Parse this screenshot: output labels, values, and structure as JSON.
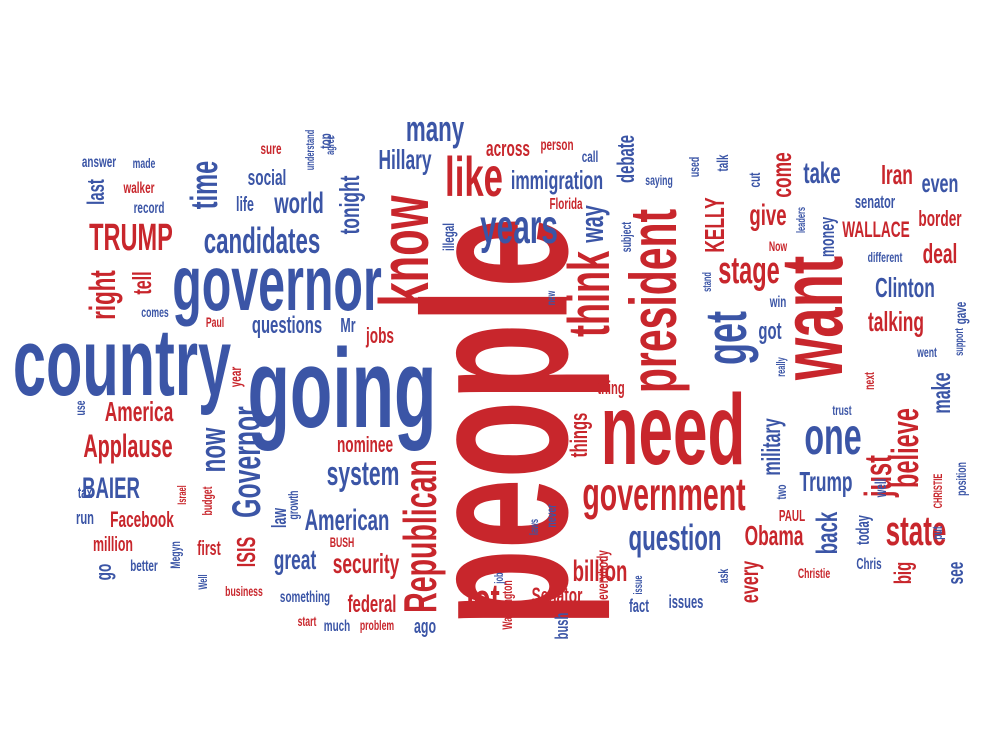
{
  "colors": {
    "red": "#c8262c",
    "blue": "#3b55a6"
  },
  "words": {
    "people": "people",
    "need": "need",
    "going": "going",
    "country": "country",
    "governor": "governor",
    "want": "want",
    "president": "president",
    "know": "know",
    "think": "think",
    "government": "government",
    "like": "like",
    "years": "years",
    "get": "get",
    "one": "one",
    "republican": "Republican",
    "governor_cap": "Governor",
    "candidates": "candidates",
    "trump_caps": "TRUMP",
    "time": "time",
    "world": "world",
    "stage": "stage",
    "state": "state",
    "just": "just",
    "believe": "believe",
    "question": "question",
    "applause": "Applause",
    "america": "America",
    "many": "many",
    "hillary": "Hillary",
    "immigration": "immigration",
    "across": "across",
    "debate": "debate",
    "system": "system",
    "american": "American",
    "security": "security",
    "lot": "lot",
    "billion": "billion",
    "senator_cap": "Senator",
    "federal": "federal",
    "now": "now",
    "tonight": "tonight",
    "social": "social",
    "life": "life",
    "questions": "questions",
    "mr": "Mr",
    "jobs": "jobs",
    "year": "year",
    "nominee": "nominee",
    "baier": "BAIER",
    "facebook": "Facebook",
    "right": "right",
    "tell": "tell",
    "last": "last",
    "answer": "answer",
    "made": "made",
    "walker": "walker",
    "record": "record",
    "sure": "sure",
    "understand": "understand",
    "top": "top",
    "person": "person",
    "call": "call",
    "florida": "Florida",
    "illegal": "illegal",
    "way": "way",
    "subject": "subject",
    "saying": "saying",
    "used": "used",
    "talk": "talk",
    "kelly": "KELLY",
    "give": "give",
    "come": "come",
    "cut": "cut",
    "take": "take",
    "iran": "Iran",
    "even": "even",
    "senator": "senator",
    "leaders": "leaders",
    "now_cap": "Now",
    "money": "money",
    "wallace": "WALLACE",
    "border": "border",
    "deal": "deal",
    "different": "different",
    "clinton": "Clinton",
    "win": "win",
    "talking": "talking",
    "gave": "gave",
    "support": "support",
    "went": "went",
    "got": "got",
    "really": "really",
    "make": "make",
    "next": "next",
    "thing": "thing",
    "things": "things",
    "military": "military",
    "trump": "Trump",
    "trust": "trust",
    "christie_caps": "CHRISTIE",
    "position": "position",
    "two": "two",
    "well": "well",
    "paul_caps": "PAUL",
    "obama": "Obama",
    "back": "back",
    "today": "today",
    "big": "big",
    "christie": "Christie",
    "chris": "Chris",
    "see": "see",
    "put": "put",
    "every": "every",
    "ask": "ask",
    "issue": "issue",
    "issues": "issues",
    "fact": "fact",
    "everybody": "everybody",
    "never": "never",
    "laws": "laws",
    "washington": "Washington",
    "job": "job",
    "bush": "bush",
    "bush_caps": "BUSH",
    "problem": "problem",
    "ago": "ago",
    "much": "much",
    "start": "start",
    "something": "something",
    "business": "business",
    "great": "great",
    "isis": "ISIS",
    "first": "first",
    "growth": "growth",
    "law": "law",
    "agree": "agree",
    "budget": "budget",
    "israel": "Israel",
    "megyn": "Megyn",
    "better": "better",
    "well_cap": "Well",
    "tax": "tax",
    "run": "run",
    "million": "million",
    "go": "go",
    "comes": "comes",
    "paul": "Paul",
    "use": "use",
    "stand": "stand",
    "new": "new"
  }
}
